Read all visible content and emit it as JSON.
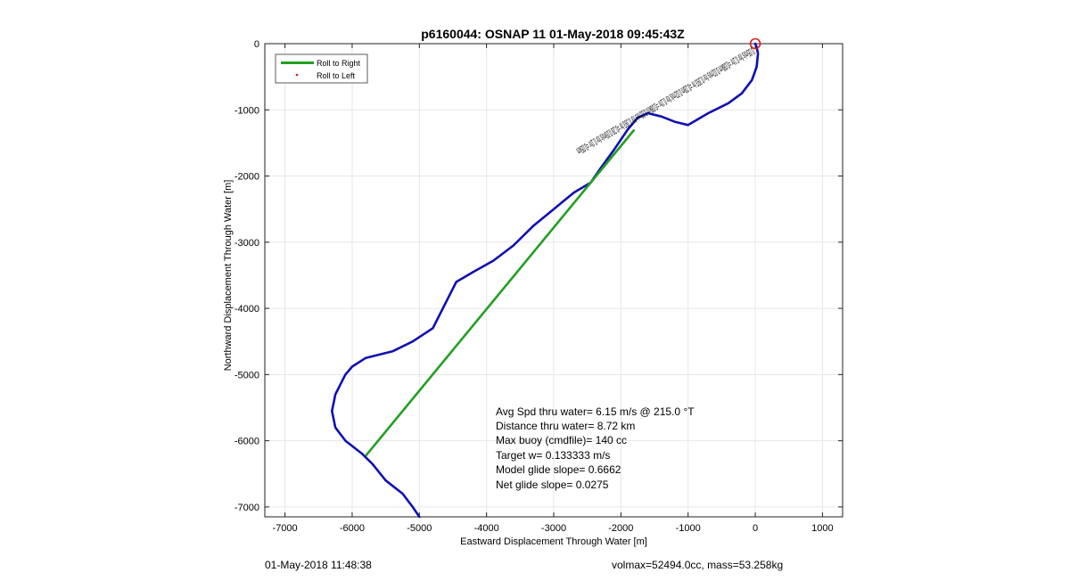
{
  "chart_data": {
    "type": "line",
    "title": "p6160044: OSNAP 11 01-May-2018 09:45:43Z",
    "xlabel": "Eastward Displacement Through Water [m]",
    "ylabel": "Northward Displacement Through Water [m]",
    "xlim": [
      -7300,
      1300
    ],
    "ylim": [
      -7150,
      0
    ],
    "xticks": [
      -7000,
      -6000,
      -5000,
      -4000,
      -3000,
      -2000,
      -1000,
      0,
      1000
    ],
    "yticks": [
      0,
      -1000,
      -2000,
      -3000,
      -4000,
      -5000,
      -6000,
      -7000
    ],
    "grid": true,
    "legend_position": "top-left",
    "series": [
      {
        "name": "",
        "kind": "track",
        "color": "#1010b0",
        "points": [
          [
            0,
            0
          ],
          [
            20,
            -50
          ],
          [
            40,
            -150
          ],
          [
            20,
            -350
          ],
          [
            -50,
            -550
          ],
          [
            -200,
            -750
          ],
          [
            -400,
            -900
          ],
          [
            -700,
            -1050
          ],
          [
            -1000,
            -1230
          ],
          [
            -1200,
            -1180
          ],
          [
            -1400,
            -1100
          ],
          [
            -1600,
            -1050
          ],
          [
            -1750,
            -1120
          ],
          [
            -1900,
            -1300
          ],
          [
            -2100,
            -1600
          ],
          [
            -2300,
            -1880
          ],
          [
            -2450,
            -2100
          ],
          [
            -2700,
            -2250
          ],
          [
            -3000,
            -2500
          ],
          [
            -3300,
            -2750
          ],
          [
            -3600,
            -3050
          ],
          [
            -3900,
            -3280
          ],
          [
            -4200,
            -3450
          ],
          [
            -4450,
            -3600
          ],
          [
            -4550,
            -3800
          ],
          [
            -4700,
            -4100
          ],
          [
            -4800,
            -4300
          ],
          [
            -5100,
            -4500
          ],
          [
            -5400,
            -4650
          ],
          [
            -5800,
            -4750
          ],
          [
            -6000,
            -4880
          ],
          [
            -6100,
            -5000
          ],
          [
            -6250,
            -5300
          ],
          [
            -6300,
            -5550
          ],
          [
            -6250,
            -5800
          ],
          [
            -6100,
            -6000
          ],
          [
            -5850,
            -6200
          ],
          [
            -5700,
            -6350
          ],
          [
            -5500,
            -6600
          ],
          [
            -5250,
            -6800
          ],
          [
            -5100,
            -7000
          ],
          [
            -5000,
            -7150
          ]
        ]
      },
      {
        "name": "Roll to Right",
        "kind": "segment",
        "color": "#22a022",
        "points": [
          [
            -5800,
            -6230
          ],
          [
            -1800,
            -1300
          ]
        ]
      },
      {
        "name": "Roll to Left",
        "kind": "marker",
        "color": "#d02020",
        "points": []
      }
    ],
    "marker_point": [
      0,
      0
    ],
    "annotation_text": "0.05m/s for 0.1hr =0.08km 0.02m/s for 0.393 hr =0.28m 0.02m/s for 0.1hr =0.08km 0.02m/s for 0.393 hr =0.28 0.09m/s for 0.1hr =0.05km",
    "stats": [
      "Avg Spd thru water=  6.15 m/s @ 215.0 °T",
      "Distance thru water=  8.72 km",
      "Max buoy (cmdfile)= 140 cc",
      "Target w= 0.133333 m/s",
      "Model glide slope= 0.6662",
      "Net glide slope= 0.0275"
    ]
  },
  "footer": {
    "timestamp": "01-May-2018 11:48:38",
    "params": "volmax=52494.0cc, mass=53.258kg"
  }
}
